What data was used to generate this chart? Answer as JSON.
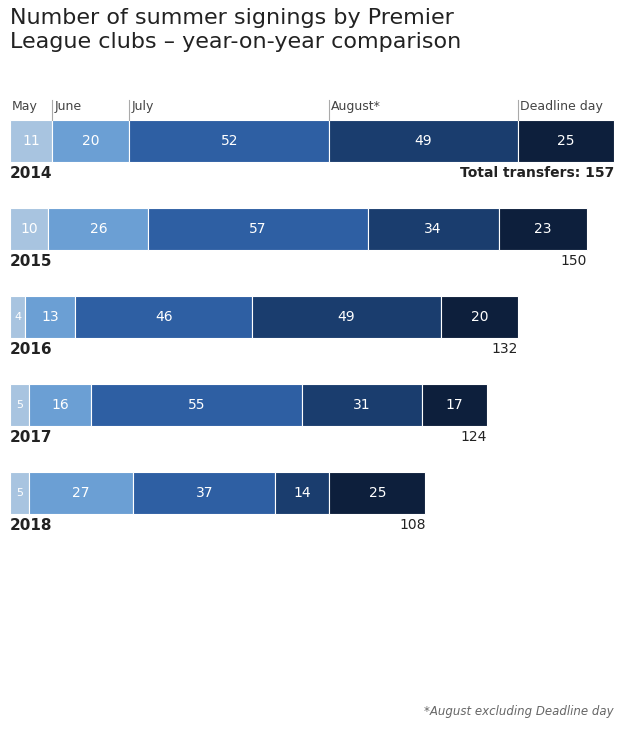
{
  "title": "Number of summer signings by Premier\nLeague clubs – year-on-year comparison",
  "title_fontsize": 16,
  "column_labels": [
    "May",
    "June",
    "July",
    "August*",
    "Deadline day"
  ],
  "years": [
    2014,
    2015,
    2016,
    2017,
    2018
  ],
  "data": [
    {
      "year": 2014,
      "values": [
        11,
        20,
        52,
        49,
        25
      ],
      "total": 157,
      "total_label": "Total transfers: 157",
      "total_bold": true
    },
    {
      "year": 2015,
      "values": [
        10,
        26,
        57,
        34,
        23
      ],
      "total": 150,
      "total_label": "150",
      "total_bold": false
    },
    {
      "year": 2016,
      "values": [
        4,
        13,
        46,
        49,
        20
      ],
      "total": 132,
      "total_label": "132",
      "total_bold": false
    },
    {
      "year": 2017,
      "values": [
        5,
        16,
        55,
        31,
        17
      ],
      "total": 124,
      "total_label": "124",
      "total_bold": false
    },
    {
      "year": 2018,
      "values": [
        5,
        27,
        37,
        14,
        25
      ],
      "total": 108,
      "total_label": "108",
      "total_bold": false
    }
  ],
  "colors": [
    "#a8c4e0",
    "#6b9fd4",
    "#2e5fa3",
    "#1a3d6e",
    "#0d1f3c"
  ],
  "max_total": 157,
  "footnote": "*August excluding Deadline day",
  "background_color": "#ffffff"
}
